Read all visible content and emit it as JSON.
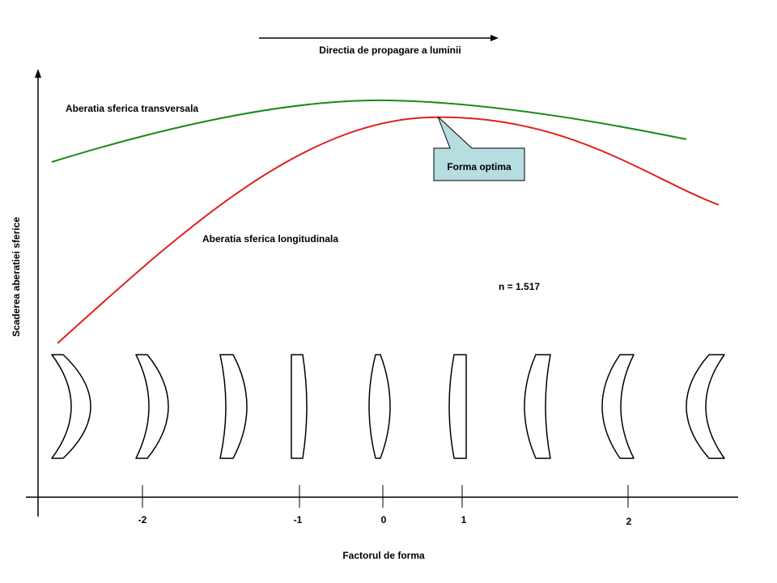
{
  "direction_label": "Directia de propagare a luminii",
  "y_axis_label": "Scaderea aberatiei sferice",
  "x_axis_label": "Factorul de forma",
  "x_ticks": [
    "-2",
    "-1",
    "0",
    "1",
    "2"
  ],
  "curves": {
    "transversal": {
      "label": "Aberatia sferica transversala",
      "color": "#1a8a1a"
    },
    "longitudinal": {
      "label": "Aberatia sferica longitudinala",
      "color": "#e02020"
    }
  },
  "callout": {
    "label": "Forma optima",
    "fill": "#b6dde0"
  },
  "refractive_index_label": "n = 1.517",
  "lens_shapes": [
    "meniscus-left",
    "meniscus-left-thin",
    "meniscus-mild",
    "plano-convex-right",
    "biconvex",
    "plano-convex-left",
    "meniscus-mild-right",
    "meniscus-right-thin",
    "meniscus-right"
  ]
}
